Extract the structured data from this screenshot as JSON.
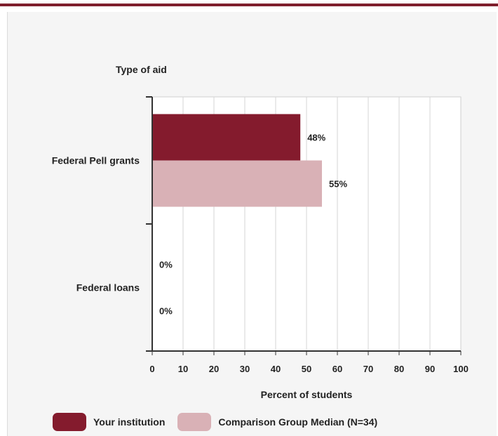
{
  "chart_data": {
    "type": "bar",
    "orientation": "horizontal",
    "title": "",
    "ylabel": "Type of aid",
    "xlabel": "Percent of students",
    "categories": [
      "Federal Pell grants",
      "Federal loans"
    ],
    "series": [
      {
        "name": "Your institution",
        "values": [
          48,
          0
        ],
        "labels": [
          "48%",
          "0%"
        ],
        "color": "#841b2d"
      },
      {
        "name": "Comparison Group Median (N=34)",
        "values": [
          55,
          0
        ],
        "labels": [
          "55%",
          "0%"
        ],
        "color": "#d9b1b6"
      }
    ],
    "xlim": [
      0,
      100
    ],
    "xticks": [
      0,
      10,
      20,
      30,
      40,
      50,
      60,
      70,
      80,
      90,
      100
    ],
    "grid": "vertical",
    "legend": "bottom"
  }
}
